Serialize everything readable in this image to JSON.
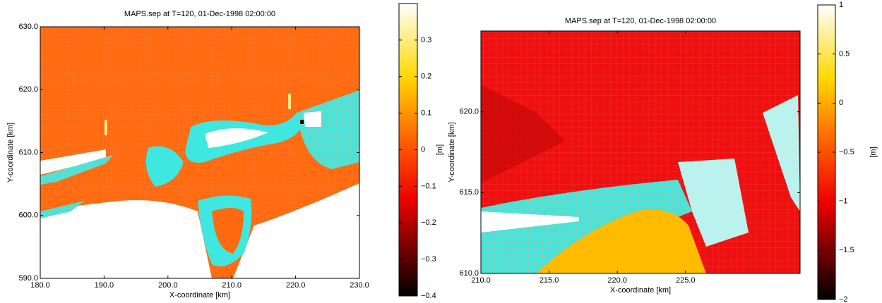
{
  "chart_data": [
    {
      "type": "map",
      "title": "MAPS.sep at T=120, 01-Dec-1998 02:00:00",
      "x_label": "X-coordinate [km]",
      "y_label": "Y-coordinate [km]",
      "colorbar_label": "[m]",
      "xlim": [
        180,
        230
      ],
      "ylim": [
        590,
        630
      ],
      "xticks": [
        {
          "value": 180,
          "label": "180.0"
        },
        {
          "value": 190,
          "label": "190.0"
        },
        {
          "value": 200,
          "label": "200.0"
        },
        {
          "value": 210,
          "label": "210.0"
        },
        {
          "value": 220,
          "label": "220.0"
        },
        {
          "value": 230,
          "label": "230.0"
        }
      ],
      "yticks": [
        {
          "value": 590,
          "label": "590.0"
        },
        {
          "value": 600,
          "label": "600.0"
        },
        {
          "value": 610,
          "label": "610.0"
        },
        {
          "value": 620,
          "label": "620.0"
        },
        {
          "value": 630,
          "label": "630.0"
        }
      ],
      "clim": [
        -0.4,
        0.4
      ],
      "cticks": [
        {
          "value": -0.4,
          "label": "−0.4"
        },
        {
          "value": -0.3,
          "label": "−0.3"
        },
        {
          "value": -0.2,
          "label": "−0.2"
        },
        {
          "value": -0.1,
          "label": "−0.1"
        },
        0,
        0.1,
        0.2,
        0.3
      ]
    },
    {
      "type": "map",
      "title": "MAPS.sep at T=120, 01-Dec-1998 02:00:00",
      "x_label": "X-coordinate [km]",
      "y_label": "Y-coordinate [km]",
      "colorbar_label": "[m]",
      "xlim": [
        210,
        233.4
      ],
      "ylim": [
        610,
        625
      ],
      "xticks": [
        {
          "value": 210,
          "label": "210.0"
        },
        {
          "value": 215,
          "label": "215.0"
        },
        {
          "value": 220,
          "label": "220.0"
        },
        {
          "value": 225,
          "label": "225.0"
        }
      ],
      "yticks": [
        {
          "value": 610,
          "label": "610.0"
        },
        {
          "value": 615,
          "label": "615.0"
        },
        {
          "value": 620,
          "label": "620.0"
        }
      ],
      "clim": [
        -2,
        1
      ],
      "cticks": [
        {
          "value": -2,
          "label": "−2"
        },
        {
          "value": -1.5,
          "label": "−1.5"
        },
        {
          "value": -1,
          "label": "−1"
        },
        {
          "value": -0.5,
          "label": "−0.5"
        },
        0,
        0.5,
        1
      ]
    }
  ]
}
